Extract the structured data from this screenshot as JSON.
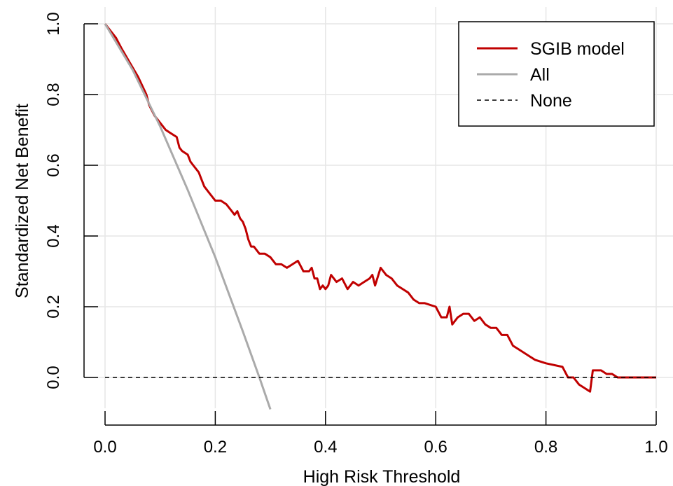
{
  "chart_data": {
    "type": "line",
    "title": "",
    "xlabel": "High Risk Threshold",
    "ylabel": "Standardized Net Benefit",
    "xlim": [
      0,
      1
    ],
    "ylim": [
      -0.1,
      1.0
    ],
    "xticks": [
      0,
      0.2,
      0.4,
      0.6,
      0.8,
      1.0
    ],
    "xtick_labels": [
      "0.0",
      "0.2",
      "0.4",
      "0.6",
      "0.8",
      "1.0"
    ],
    "yticks": [
      0,
      0.2,
      0.4,
      0.6,
      0.8,
      1.0
    ],
    "ytick_labels": [
      "0.0",
      "0.2",
      "0.4",
      "0.6",
      "0.8",
      "1.0"
    ],
    "grid": true,
    "legend": {
      "placement": "top-right"
    },
    "series": [
      {
        "name": "SGIB model",
        "color": "#c00000",
        "style": "solid",
        "x": [
          0.0,
          0.02,
          0.03,
          0.045,
          0.06,
          0.075,
          0.08,
          0.09,
          0.1,
          0.11,
          0.12,
          0.13,
          0.135,
          0.14,
          0.15,
          0.155,
          0.16,
          0.17,
          0.175,
          0.18,
          0.19,
          0.2,
          0.21,
          0.22,
          0.23,
          0.235,
          0.24,
          0.245,
          0.25,
          0.255,
          0.26,
          0.265,
          0.27,
          0.28,
          0.29,
          0.3,
          0.31,
          0.32,
          0.33,
          0.34,
          0.35,
          0.36,
          0.37,
          0.375,
          0.38,
          0.385,
          0.39,
          0.395,
          0.4,
          0.405,
          0.41,
          0.42,
          0.43,
          0.44,
          0.45,
          0.46,
          0.47,
          0.48,
          0.485,
          0.49,
          0.5,
          0.51,
          0.52,
          0.53,
          0.54,
          0.55,
          0.56,
          0.57,
          0.58,
          0.6,
          0.61,
          0.62,
          0.625,
          0.63,
          0.64,
          0.65,
          0.66,
          0.67,
          0.68,
          0.69,
          0.7,
          0.71,
          0.72,
          0.73,
          0.74,
          0.75,
          0.77,
          0.78,
          0.8,
          0.83,
          0.84,
          0.85,
          0.86,
          0.87,
          0.88,
          0.885,
          0.89,
          0.9,
          0.91,
          0.92,
          0.93,
          0.94,
          1.0
        ],
        "y": [
          1.0,
          0.96,
          0.93,
          0.89,
          0.85,
          0.8,
          0.77,
          0.74,
          0.72,
          0.7,
          0.69,
          0.68,
          0.65,
          0.64,
          0.63,
          0.61,
          0.6,
          0.58,
          0.56,
          0.54,
          0.52,
          0.5,
          0.5,
          0.49,
          0.47,
          0.46,
          0.47,
          0.45,
          0.44,
          0.42,
          0.39,
          0.37,
          0.37,
          0.35,
          0.35,
          0.34,
          0.32,
          0.32,
          0.31,
          0.32,
          0.33,
          0.3,
          0.3,
          0.31,
          0.28,
          0.28,
          0.25,
          0.26,
          0.25,
          0.26,
          0.29,
          0.27,
          0.28,
          0.25,
          0.27,
          0.26,
          0.27,
          0.28,
          0.29,
          0.26,
          0.31,
          0.29,
          0.28,
          0.26,
          0.25,
          0.24,
          0.22,
          0.21,
          0.21,
          0.2,
          0.17,
          0.17,
          0.2,
          0.15,
          0.17,
          0.18,
          0.18,
          0.16,
          0.17,
          0.15,
          0.14,
          0.14,
          0.12,
          0.12,
          0.09,
          0.08,
          0.06,
          0.05,
          0.04,
          0.03,
          0.0,
          0.0,
          -0.02,
          -0.03,
          -0.04,
          0.02,
          0.02,
          0.02,
          0.01,
          0.01,
          0.0,
          0.0,
          0.0
        ]
      },
      {
        "name": "All",
        "color": "#aaaaaa",
        "style": "solid",
        "x": [
          0.0,
          0.05,
          0.1,
          0.15,
          0.2,
          0.25,
          0.28,
          0.3
        ],
        "y": [
          1.0,
          0.87,
          0.71,
          0.53,
          0.34,
          0.13,
          0.0,
          -0.09
        ]
      },
      {
        "name": "None",
        "color": "#000000",
        "style": "dashed",
        "x": [
          0.0,
          1.0
        ],
        "y": [
          0.0,
          0.0
        ]
      }
    ]
  }
}
